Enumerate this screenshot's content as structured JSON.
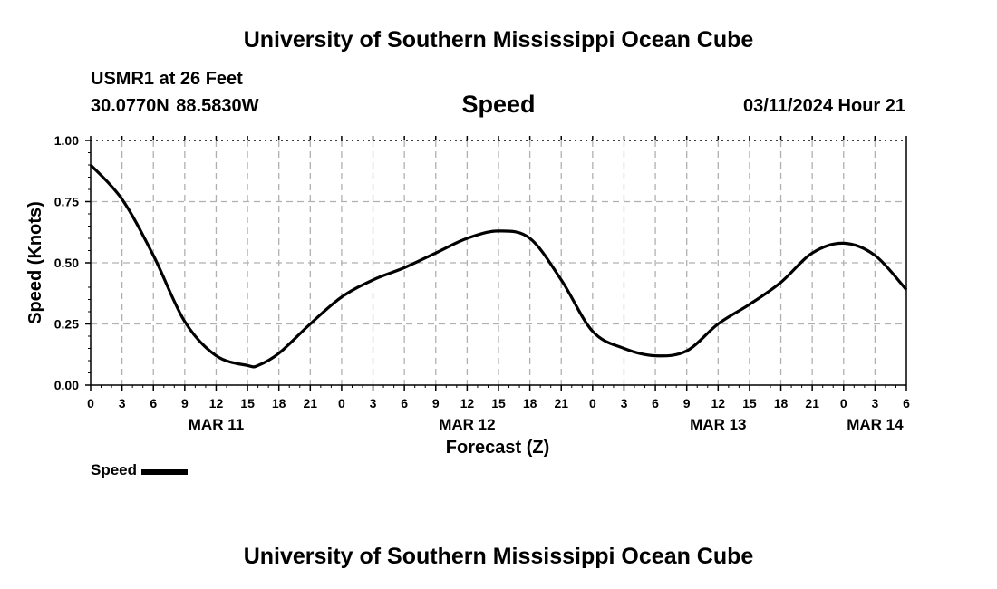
{
  "header": {
    "title_top": "University of Southern Mississippi Ocean Cube",
    "station_name": "USMR1 at 26 Feet",
    "station_coords": "30.0770N  88.5830W",
    "variable_title": "Speed",
    "forecast_time": "03/11/2024 Hour 21"
  },
  "footer": {
    "title_bottom": "University of Southern Mississippi Ocean Cube"
  },
  "legend": {
    "label": "Speed",
    "color": "#000000"
  },
  "chart_data": {
    "type": "line",
    "xlabel": "Forecast (Z)",
    "ylabel": "Speed (Knots)",
    "xlim": [
      0,
      78
    ],
    "ylim": [
      0,
      1
    ],
    "y_ticks": [
      0,
      0.25,
      0.5,
      0.75,
      1
    ],
    "y_tick_labels": [
      "0.00",
      "0.25",
      "0.50",
      "0.75",
      "1.00"
    ],
    "x_ticks": [
      0,
      3,
      6,
      9,
      12,
      15,
      18,
      21,
      24,
      27,
      30,
      33,
      36,
      39,
      42,
      45,
      48,
      51,
      54,
      57,
      60,
      63,
      66,
      69,
      72,
      75,
      78
    ],
    "x_tick_labels": [
      "0",
      "3",
      "6",
      "9",
      "12",
      "15",
      "18",
      "21",
      "0",
      "3",
      "6",
      "9",
      "12",
      "15",
      "18",
      "21",
      "0",
      "3",
      "6",
      "9",
      "12",
      "15",
      "18",
      "21",
      "0",
      "3",
      "6"
    ],
    "date_labels": [
      {
        "x": 12,
        "label": "MAR 11"
      },
      {
        "x": 36,
        "label": "MAR 12"
      },
      {
        "x": 60,
        "label": "MAR 13"
      },
      {
        "x": 75,
        "label": "MAR 14"
      }
    ],
    "grid": true,
    "legend_position": "bottom-left",
    "series": [
      {
        "name": "Speed",
        "x": [
          0,
          3,
          6,
          9,
          12,
          15,
          16,
          18,
          21,
          24,
          27,
          30,
          33,
          36,
          39,
          42,
          45,
          48,
          51,
          54,
          57,
          60,
          63,
          66,
          69,
          72,
          75,
          78
        ],
        "y": [
          0.9,
          0.76,
          0.53,
          0.26,
          0.12,
          0.08,
          0.08,
          0.13,
          0.25,
          0.36,
          0.43,
          0.48,
          0.54,
          0.6,
          0.63,
          0.6,
          0.43,
          0.22,
          0.15,
          0.12,
          0.14,
          0.25,
          0.33,
          0.42,
          0.54,
          0.58,
          0.53,
          0.39
        ]
      }
    ]
  }
}
